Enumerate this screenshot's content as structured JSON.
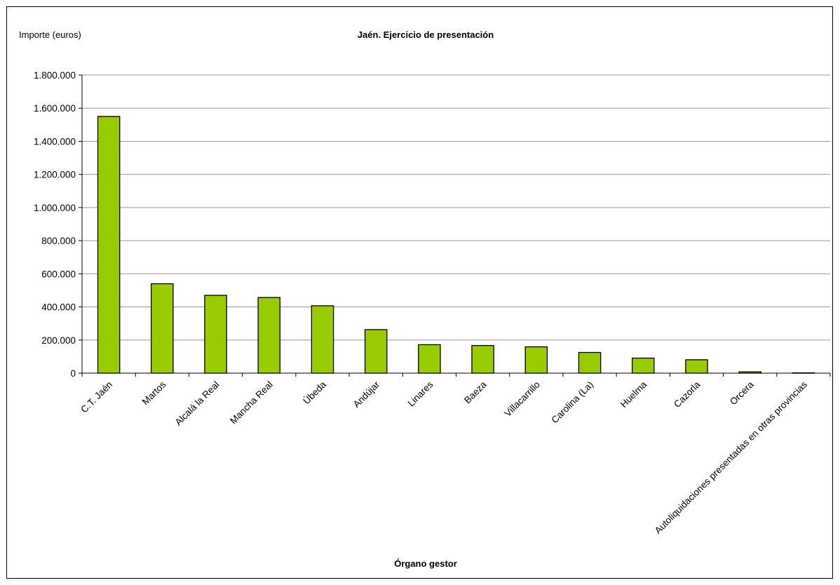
{
  "chart_data": {
    "type": "bar",
    "title": "Jaén. Ejercicio de presentación",
    "ylabel": "Importe (euros)",
    "xlabel": "Órgano gestor",
    "ylim": [
      0,
      1800000
    ],
    "yticks": [
      0,
      200000,
      400000,
      600000,
      800000,
      1000000,
      1200000,
      1400000,
      1600000,
      1800000
    ],
    "ytick_labels": [
      "0",
      "200.000",
      "400.000",
      "600.000",
      "800.000",
      "1.000.000",
      "1.200.000",
      "1.400.000",
      "1.600.000",
      "1.800.000"
    ],
    "grid": true,
    "bar_color": "#99cc00",
    "categories": [
      "C.T. Jaén",
      "Martos",
      "Alcalá la Real",
      "Mancha Real",
      "Úbeda",
      "Andújar",
      "Linares",
      "Baeza",
      "Villacarrillo",
      "Carolina (La)",
      "Huelma",
      "Cazorla",
      "Orcera",
      "Autoliquidaciones presentadas en otras provincias"
    ],
    "values": [
      1550000,
      540000,
      470000,
      457000,
      407000,
      263000,
      172000,
      167000,
      159000,
      125000,
      91000,
      81000,
      8000,
      2000
    ]
  }
}
